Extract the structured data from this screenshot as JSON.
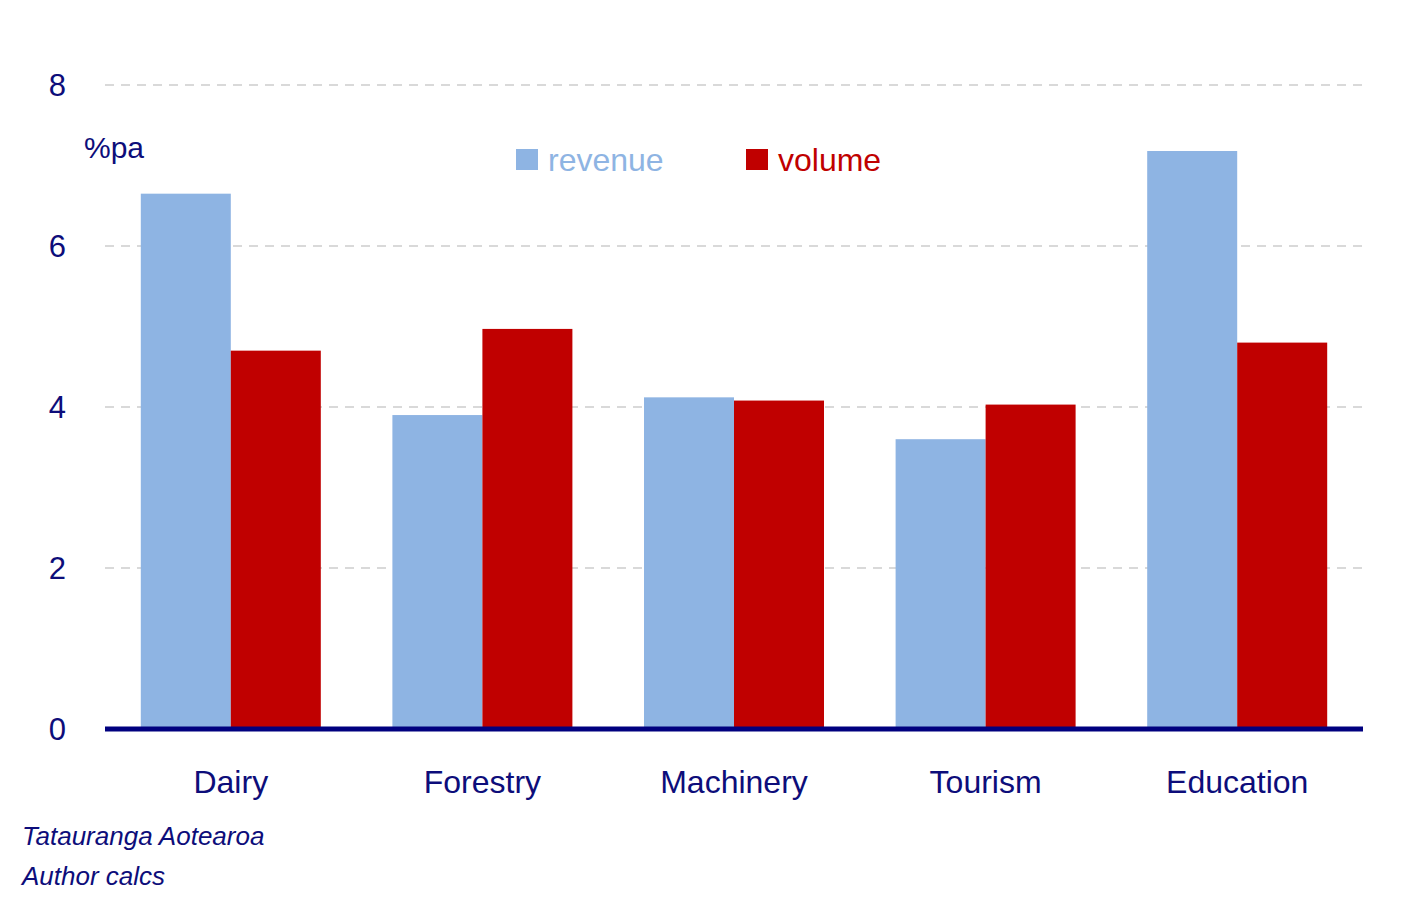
{
  "chart_data": {
    "type": "bar",
    "y_label": "%pa",
    "categories": [
      "Dairy",
      "Forestry",
      "Machinery",
      "Tourism",
      "Education"
    ],
    "series": [
      {
        "name": "revenue",
        "color": "#8eb4e3",
        "values": [
          6.65,
          3.9,
          4.12,
          3.6,
          7.18
        ]
      },
      {
        "name": "volume",
        "color": "#c00000",
        "values": [
          4.7,
          4.97,
          4.08,
          4.03,
          4.8
        ]
      }
    ],
    "ylim": [
      0,
      8
    ],
    "yticks": [
      0,
      2,
      4,
      6,
      8
    ],
    "grid": true,
    "legend": "top",
    "annotations": [
      "Tatauranga Aotearoa",
      "Author calcs"
    ]
  }
}
